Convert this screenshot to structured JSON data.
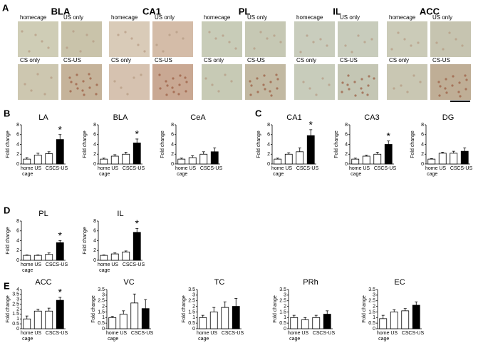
{
  "panel_letters": [
    "A",
    "B",
    "C",
    "D",
    "E"
  ],
  "panel_a": {
    "regions": [
      "BLA",
      "CA1",
      "PL",
      "IL",
      "ACC"
    ],
    "conditions": [
      "homecage",
      "US only",
      "CS only",
      "CS-US"
    ]
  },
  "chart_data": [
    {
      "type": "bar",
      "title": "LA",
      "y_label": "Fold change",
      "categories": [
        "home cage",
        "US",
        "CS",
        "CS-US"
      ],
      "values": [
        1.0,
        1.8,
        2.1,
        5.0
      ],
      "errors": [
        0.3,
        0.4,
        0.4,
        1.0
      ],
      "colors": [
        "#ffffff",
        "#ffffff",
        "#ffffff",
        "#000000"
      ],
      "ylim": [
        0,
        8
      ],
      "yticks": [
        0,
        2,
        4,
        6,
        8
      ],
      "annotation": {
        "text": "*",
        "category": "CS-US"
      }
    },
    {
      "type": "bar",
      "title": "BLA",
      "y_label": "Fold change",
      "categories": [
        "home cage",
        "US",
        "CS",
        "CS-US"
      ],
      "values": [
        1.0,
        1.6,
        2.0,
        4.3
      ],
      "errors": [
        0.2,
        0.3,
        0.4,
        0.8
      ],
      "colors": [
        "#ffffff",
        "#ffffff",
        "#ffffff",
        "#000000"
      ],
      "ylim": [
        0,
        8
      ],
      "yticks": [
        0,
        2,
        4,
        6,
        8
      ],
      "annotation": {
        "text": "*",
        "category": "CS-US"
      }
    },
    {
      "type": "bar",
      "title": "CeA",
      "y_label": "Fold change",
      "categories": [
        "home cage",
        "US",
        "CS",
        "CS-US"
      ],
      "values": [
        1.0,
        1.3,
        2.0,
        2.5
      ],
      "errors": [
        0.2,
        0.4,
        0.5,
        0.8
      ],
      "colors": [
        "#ffffff",
        "#ffffff",
        "#ffffff",
        "#000000"
      ],
      "ylim": [
        0,
        8
      ],
      "yticks": [
        0,
        2,
        4,
        6,
        8
      ]
    },
    {
      "type": "bar",
      "title": "CA1",
      "y_label": "Fold change",
      "categories": [
        "home cage",
        "US",
        "CS",
        "CS-US"
      ],
      "values": [
        1.0,
        2.0,
        2.5,
        5.8
      ],
      "errors": [
        0.2,
        0.3,
        0.8,
        1.2
      ],
      "colors": [
        "#ffffff",
        "#ffffff",
        "#ffffff",
        "#000000"
      ],
      "ylim": [
        0,
        8
      ],
      "yticks": [
        0,
        2,
        4,
        6,
        8
      ],
      "annotation": {
        "text": "*",
        "category": "CS-US"
      }
    },
    {
      "type": "bar",
      "title": "CA3",
      "y_label": "Fold change",
      "categories": [
        "home cage",
        "US",
        "CS",
        "CS-US"
      ],
      "values": [
        1.0,
        1.6,
        2.0,
        4.0
      ],
      "errors": [
        0.2,
        0.2,
        0.4,
        0.7
      ],
      "colors": [
        "#ffffff",
        "#ffffff",
        "#ffffff",
        "#000000"
      ],
      "ylim": [
        0,
        8
      ],
      "yticks": [
        0,
        2,
        4,
        6,
        8
      ],
      "annotation": {
        "text": "*",
        "category": "CS-US"
      }
    },
    {
      "type": "bar",
      "title": "DG",
      "y_label": "Fold change",
      "categories": [
        "home cage",
        "US",
        "CS",
        "CS-US"
      ],
      "values": [
        1.0,
        2.2,
        2.2,
        2.6
      ],
      "errors": [
        0.1,
        0.2,
        0.4,
        0.7
      ],
      "colors": [
        "#ffffff",
        "#ffffff",
        "#ffffff",
        "#000000"
      ],
      "ylim": [
        0,
        8
      ],
      "yticks": [
        0,
        2,
        4,
        6,
        8
      ]
    },
    {
      "type": "bar",
      "title": "PL",
      "y_label": "Fold change",
      "categories": [
        "home cage",
        "US",
        "CS",
        "CS-US"
      ],
      "values": [
        1.0,
        1.0,
        1.2,
        3.6
      ],
      "errors": [
        0.1,
        0.1,
        0.3,
        0.4
      ],
      "colors": [
        "#ffffff",
        "#ffffff",
        "#ffffff",
        "#000000"
      ],
      "ylim": [
        0,
        8
      ],
      "yticks": [
        0,
        2,
        4,
        6,
        8
      ],
      "annotation": {
        "text": "*",
        "category": "CS-US"
      }
    },
    {
      "type": "bar",
      "title": "IL",
      "y_label": "Fold change",
      "categories": [
        "home cage",
        "US",
        "CS",
        "CS-US"
      ],
      "values": [
        1.0,
        1.3,
        1.7,
        5.7
      ],
      "errors": [
        0.1,
        0.2,
        0.2,
        0.8
      ],
      "colors": [
        "#ffffff",
        "#ffffff",
        "#ffffff",
        "#000000"
      ],
      "ylim": [
        0,
        8
      ],
      "yticks": [
        0,
        2,
        4,
        6,
        8
      ],
      "annotation": {
        "text": "*",
        "category": "CS-US"
      }
    },
    {
      "type": "bar",
      "title": "ACC",
      "y_label": "Fold change",
      "categories": [
        "home cage",
        "US",
        "CS",
        "CS-US"
      ],
      "values": [
        1.0,
        1.8,
        1.8,
        2.9
      ],
      "errors": [
        0.3,
        0.2,
        0.3,
        0.3
      ],
      "colors": [
        "#ffffff",
        "#ffffff",
        "#ffffff",
        "#000000"
      ],
      "ylim": [
        0,
        4
      ],
      "yticks": [
        0,
        0.5,
        1,
        1.5,
        2,
        2.5,
        3,
        3.5,
        4
      ],
      "annotation": {
        "text": "*",
        "category": "CS-US"
      }
    },
    {
      "type": "bar",
      "title": "VC",
      "y_label": "Fold change",
      "categories": [
        "home cage",
        "US",
        "CS",
        "CS-US"
      ],
      "values": [
        1.0,
        1.3,
        2.3,
        1.8
      ],
      "errors": [
        0.1,
        0.3,
        0.8,
        0.8
      ],
      "colors": [
        "#ffffff",
        "#ffffff",
        "#ffffff",
        "#000000"
      ],
      "ylim": [
        0,
        3.5
      ],
      "yticks": [
        0,
        0.5,
        1,
        1.5,
        2,
        2.5,
        3,
        3.5
      ]
    },
    {
      "type": "bar",
      "title": "TC",
      "y_label": "Fold change",
      "categories": [
        "home cage",
        "US",
        "CS",
        "CS-US"
      ],
      "values": [
        1.0,
        1.5,
        1.9,
        2.0
      ],
      "errors": [
        0.2,
        0.4,
        0.5,
        0.7
      ],
      "colors": [
        "#ffffff",
        "#ffffff",
        "#ffffff",
        "#000000"
      ],
      "ylim": [
        0,
        3.5
      ],
      "yticks": [
        0,
        0.5,
        1,
        1.5,
        2,
        2.5,
        3,
        3.5
      ]
    },
    {
      "type": "bar",
      "title": "PRh",
      "y_label": "Fold change",
      "categories": [
        "home cage",
        "US",
        "CS",
        "CS-US"
      ],
      "values": [
        1.0,
        0.8,
        1.0,
        1.3
      ],
      "errors": [
        0.2,
        0.2,
        0.2,
        0.3
      ],
      "colors": [
        "#ffffff",
        "#ffffff",
        "#ffffff",
        "#000000"
      ],
      "ylim": [
        0,
        3.5
      ],
      "yticks": [
        0,
        0.5,
        1,
        1.5,
        2,
        2.5,
        3,
        3.5
      ]
    },
    {
      "type": "bar",
      "title": "EC",
      "y_label": "Fold change",
      "categories": [
        "home cage",
        "US",
        "CS",
        "CS-US"
      ],
      "values": [
        0.9,
        1.5,
        1.6,
        2.1
      ],
      "errors": [
        0.3,
        0.2,
        0.2,
        0.3
      ],
      "colors": [
        "#ffffff",
        "#ffffff",
        "#ffffff",
        "#000000"
      ],
      "ylim": [
        0,
        3.5
      ],
      "yticks": [
        0,
        0.5,
        1,
        1.5,
        2,
        2.5,
        3,
        3.5
      ]
    }
  ]
}
